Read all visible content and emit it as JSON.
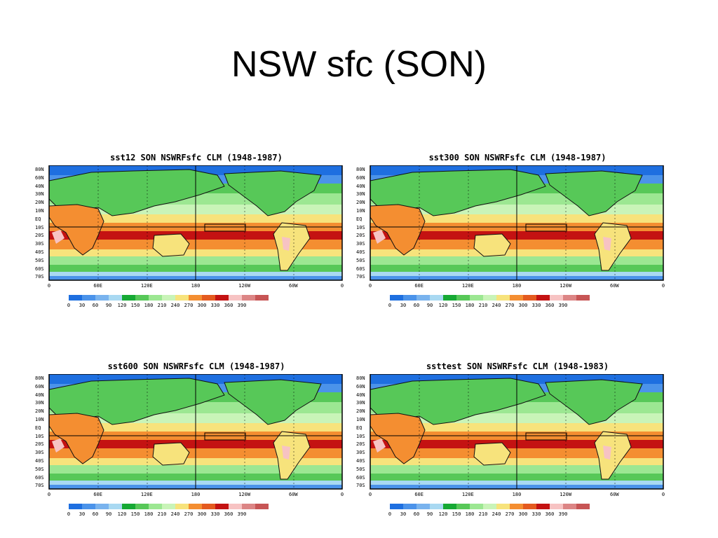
{
  "slide": {
    "title": "NSW sfc (SON)"
  },
  "common": {
    "lat_labels": [
      "80N",
      "60N",
      "40N",
      "30N",
      "20N",
      "10N",
      "EQ",
      "10S",
      "20S",
      "30S",
      "40S",
      "50S",
      "60S",
      "70S"
    ],
    "lon_labels": [
      "0",
      "60E",
      "120E",
      "180",
      "120W",
      "60W",
      "0"
    ],
    "colorbar_levels": [
      "0",
      "30",
      "60",
      "90",
      "120",
      "150",
      "180",
      "210",
      "240",
      "270",
      "300",
      "330",
      "360",
      "390"
    ],
    "colorbar_colors": [
      "#1e6fe0",
      "#4b93ea",
      "#79b3ee",
      "#a9d9f2",
      "#16a934",
      "#57c858",
      "#9ce792",
      "#c9f4b8",
      "#f7e37c",
      "#f48e31",
      "#e45a1f",
      "#c41212",
      "#f7c3c3",
      "#dc8585",
      "#c75555",
      "#b12c2c"
    ]
  },
  "panels": [
    {
      "title": "sst12 SON NSWRFsfc CLM (1948-1987)"
    },
    {
      "title": "sst300 SON NSWRFsfc CLM (1948-1987)"
    },
    {
      "title": "sst600 SON NSWRFsfc CLM (1948-1987)"
    },
    {
      "title": "ssttest SON NSWRFsfc CLM (1948-1983)"
    }
  ]
}
